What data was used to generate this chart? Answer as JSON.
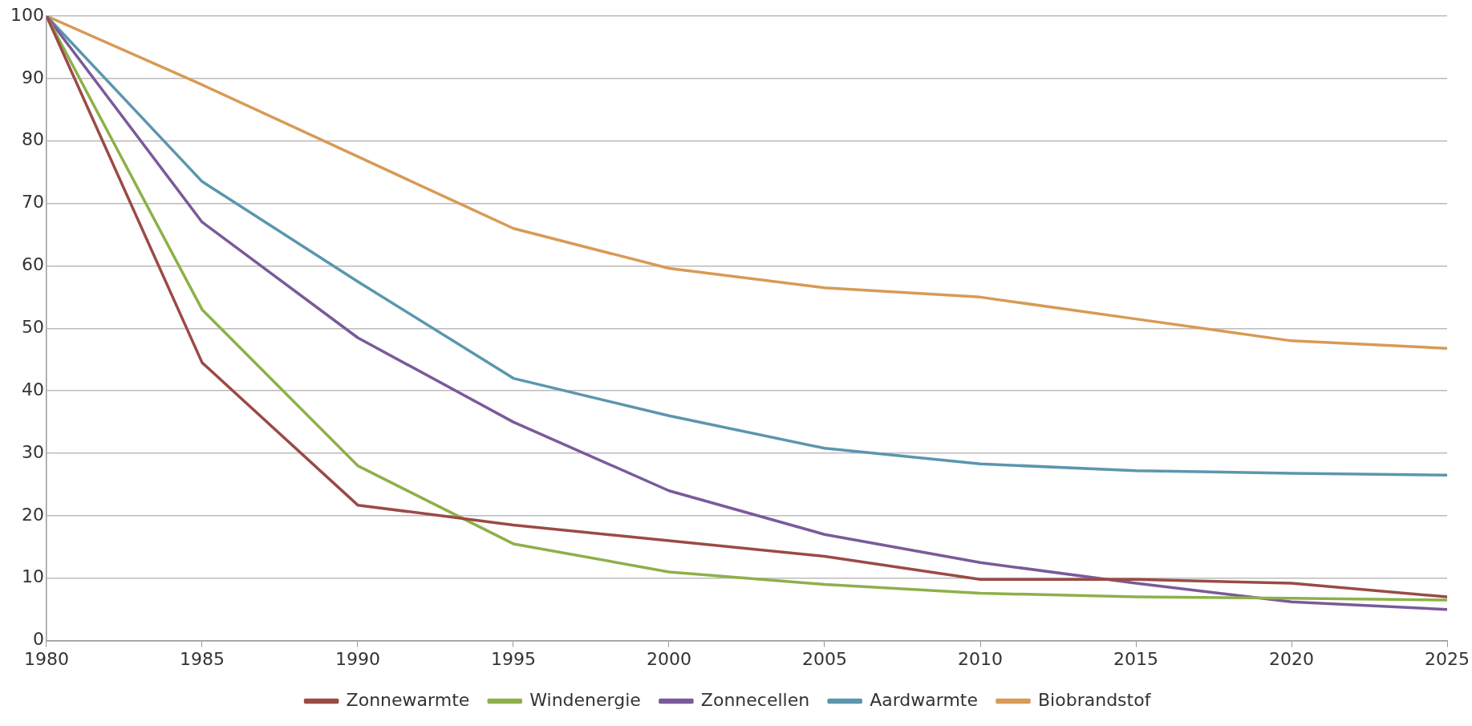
{
  "chart_data": {
    "type": "line",
    "x": [
      1980,
      1985,
      1990,
      1995,
      2000,
      2005,
      2010,
      2015,
      2020,
      2025
    ],
    "xlim": [
      1980,
      2025
    ],
    "xticks": [
      1980,
      1985,
      1990,
      1995,
      2000,
      2005,
      2010,
      2015,
      2020,
      2025
    ],
    "ylim": [
      0,
      100
    ],
    "yticks": [
      0,
      10,
      20,
      30,
      40,
      50,
      60,
      70,
      80,
      90,
      100
    ],
    "grid": "y",
    "legend": "bottom",
    "marker": "none",
    "line_style": "solid",
    "series": [
      {
        "name": "Zonnewarmte",
        "color": "#9b4a45",
        "values": [
          100,
          44.5,
          21.7,
          18.5,
          16,
          13.5,
          9.8,
          9.8,
          9.2,
          7
        ]
      },
      {
        "name": "Windenergie",
        "color": "#8db04a",
        "values": [
          100,
          53,
          28,
          15.5,
          11,
          9,
          7.6,
          7,
          6.8,
          6.5
        ]
      },
      {
        "name": "Zonnecellen",
        "color": "#7a5a9a",
        "values": [
          100,
          67,
          48.5,
          35,
          24,
          17,
          12.5,
          9.2,
          6.2,
          5
        ]
      },
      {
        "name": "Aardwarmte",
        "color": "#5b96ae",
        "values": [
          100,
          73.5,
          57.5,
          42,
          36,
          30.8,
          28.3,
          27.2,
          26.8,
          26.5
        ]
      },
      {
        "name": "Biobrandstof",
        "color": "#d89a55",
        "values": [
          100,
          89,
          77.5,
          66,
          59.6,
          56.5,
          55,
          51.5,
          48,
          46.8
        ]
      }
    ]
  }
}
